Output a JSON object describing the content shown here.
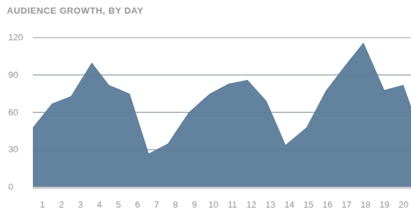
{
  "chart_data": {
    "type": "area",
    "title": "AUDIENCE GROWTH, BY DAY",
    "x": [
      0.5,
      1.5,
      2.5,
      3.6,
      4.5,
      5.6,
      6.6,
      7.6,
      8.7,
      9.8,
      10.8,
      11.8,
      12.8,
      13.8,
      14.9,
      15.9,
      16.9,
      17.9,
      19.0,
      20.0,
      20.4
    ],
    "values": [
      48,
      67,
      73,
      100,
      82,
      75,
      27,
      35,
      60,
      75,
      83,
      86,
      69,
      34,
      48,
      77,
      97,
      116,
      78,
      82,
      65
    ],
    "color": "#63829e",
    "xlim": [
      0.5,
      20.4
    ],
    "xticks": [
      1,
      2,
      3,
      4,
      5,
      6,
      7,
      8,
      9,
      10,
      11,
      12,
      13,
      14,
      15,
      16,
      17,
      18,
      19,
      20
    ],
    "ylim": [
      0,
      120
    ],
    "yticks": [
      0,
      30,
      60,
      90,
      120
    ],
    "grid": true
  }
}
